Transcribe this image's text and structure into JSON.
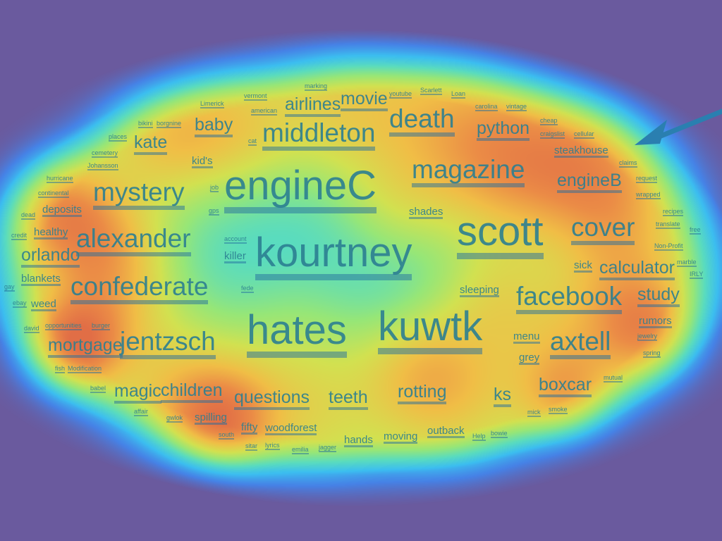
{
  "colors": {
    "background": "#6a5a9e",
    "word": "#2c7f92",
    "underline": "#236ea0",
    "arrow": "#2a7fb0"
  },
  "words": [
    {
      "text": "engineC",
      "size": 4
    },
    {
      "text": "kourtney",
      "size": 4
    },
    {
      "text": "hates",
      "size": 4
    },
    {
      "text": "kuwtk",
      "size": 4
    },
    {
      "text": "scott",
      "size": 4
    },
    {
      "text": "magazine",
      "size": 3
    },
    {
      "text": "middleton",
      "size": 3
    },
    {
      "text": "death",
      "size": 3
    },
    {
      "text": "mystery",
      "size": 3
    },
    {
      "text": "alexander",
      "size": 3
    },
    {
      "text": "confederate",
      "size": 3
    },
    {
      "text": "jentzsch",
      "size": 3
    },
    {
      "text": "facebook",
      "size": 3
    },
    {
      "text": "cover",
      "size": 3
    },
    {
      "text": "axtell",
      "size": 3
    },
    {
      "text": "kate",
      "size": 2
    },
    {
      "text": "baby",
      "size": 2
    },
    {
      "text": "python",
      "size": 2
    },
    {
      "text": "teeth",
      "size": 2
    },
    {
      "text": "rotting",
      "size": 2
    },
    {
      "text": "ks",
      "size": 2
    },
    {
      "text": "questions",
      "size": 2
    },
    {
      "text": "children",
      "size": 2
    },
    {
      "text": "magic",
      "size": 2
    },
    {
      "text": "boxcar",
      "size": 2
    },
    {
      "text": "calculator",
      "size": 2
    },
    {
      "text": "study",
      "size": 2
    },
    {
      "text": "engineB",
      "size": 2
    },
    {
      "text": "airlines",
      "size": 2
    },
    {
      "text": "movie",
      "size": 2
    },
    {
      "text": "mortgage",
      "size": 2
    },
    {
      "text": "orlando",
      "size": 2
    },
    {
      "text": "steakhouse",
      "size": 1
    },
    {
      "text": "shades",
      "size": 1
    },
    {
      "text": "sleeping",
      "size": 1
    },
    {
      "text": "menu",
      "size": 1
    },
    {
      "text": "grey",
      "size": 1
    },
    {
      "text": "rumors",
      "size": 1
    },
    {
      "text": "sick",
      "size": 1
    },
    {
      "text": "healthy",
      "size": 1
    },
    {
      "text": "deposits",
      "size": 1
    },
    {
      "text": "blankets",
      "size": 1
    },
    {
      "text": "weed",
      "size": 1
    },
    {
      "text": "killer",
      "size": 1
    },
    {
      "text": "kid's",
      "size": 1
    },
    {
      "text": "spilling",
      "size": 1
    },
    {
      "text": "fifty",
      "size": 1
    },
    {
      "text": "woodforest",
      "size": 1
    },
    {
      "text": "hands",
      "size": 1
    },
    {
      "text": "moving",
      "size": 1
    },
    {
      "text": "outback",
      "size": 1
    },
    {
      "text": "Non-Profit",
      "size": 0
    },
    {
      "text": "marble",
      "size": 0
    },
    {
      "text": "IRLY",
      "size": 0
    },
    {
      "text": "jewelry",
      "size": 0
    },
    {
      "text": "spring",
      "size": 0
    },
    {
      "text": "mutual",
      "size": 0
    },
    {
      "text": "mick",
      "size": 0
    },
    {
      "text": "smoke",
      "size": 0
    },
    {
      "text": "Help",
      "size": 0
    },
    {
      "text": "bowie",
      "size": 0
    },
    {
      "text": "jagger",
      "size": 0
    },
    {
      "text": "emilia",
      "size": 0
    },
    {
      "text": "lyrics",
      "size": 0
    },
    {
      "text": "sitar",
      "size": 0
    },
    {
      "text": "south",
      "size": 0
    },
    {
      "text": "gwlok",
      "size": 0
    },
    {
      "text": "affair",
      "size": 0
    },
    {
      "text": "babel",
      "size": 0
    },
    {
      "text": "Modification",
      "size": 0
    },
    {
      "text": "fish",
      "size": 0
    },
    {
      "text": "david",
      "size": 0
    },
    {
      "text": "ebay",
      "size": 0
    },
    {
      "text": "gay",
      "size": 0
    },
    {
      "text": "credit",
      "size": 0
    },
    {
      "text": "dead",
      "size": 0
    },
    {
      "text": "continental",
      "size": 0
    },
    {
      "text": "hurricane",
      "size": 0
    },
    {
      "text": "Johansson",
      "size": 0
    },
    {
      "text": "cemetery",
      "size": 0
    },
    {
      "text": "places",
      "size": 0
    },
    {
      "text": "bikini",
      "size": 0
    },
    {
      "text": "borgnine",
      "size": 0
    },
    {
      "text": "Limerick",
      "size": 0
    },
    {
      "text": "vermont",
      "size": 0
    },
    {
      "text": "american",
      "size": 0
    },
    {
      "text": "marking",
      "size": 0
    },
    {
      "text": "youtube",
      "size": 0
    },
    {
      "text": "Scarlett",
      "size": 0
    },
    {
      "text": "Loan",
      "size": 0
    },
    {
      "text": "carolina",
      "size": 0
    },
    {
      "text": "vintage",
      "size": 0
    },
    {
      "text": "cheap",
      "size": 0
    },
    {
      "text": "craigslist",
      "size": 0
    },
    {
      "text": "cellular",
      "size": 0
    },
    {
      "text": "claims",
      "size": 0
    },
    {
      "text": "request",
      "size": 0
    },
    {
      "text": "wrapped",
      "size": 0
    },
    {
      "text": "recipes",
      "size": 0
    },
    {
      "text": "translate",
      "size": 0
    },
    {
      "text": "free",
      "size": 0
    },
    {
      "text": "job",
      "size": 0
    },
    {
      "text": "gps",
      "size": 0
    },
    {
      "text": "account",
      "size": 0
    },
    {
      "text": "opportunities",
      "size": 0
    },
    {
      "text": "burger",
      "size": 0
    },
    {
      "text": "fede",
      "size": 0
    },
    {
      "text": "cat",
      "size": 0
    }
  ]
}
